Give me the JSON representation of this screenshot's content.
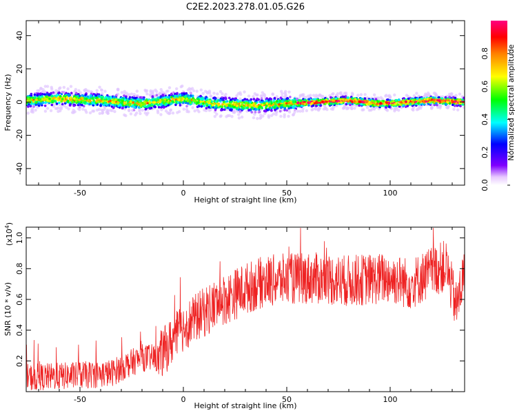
{
  "title": "C2E2.2023.278.01.05.G26",
  "chart_data": [
    {
      "type": "heatmap",
      "xlabel": "Height of straight line (km)",
      "ylabel": "Frequency (Hz)",
      "xlim": [
        -76,
        136
      ],
      "ylim": [
        -50,
        49
      ],
      "xticks": [
        -50,
        0,
        50,
        100
      ],
      "yticks": [
        -40,
        -20,
        0,
        20,
        40
      ],
      "colorbar": {
        "label": "Normalized spectral amplitude",
        "range": [
          0,
          1
        ],
        "ticks": [
          "0.0",
          "0.2",
          "0.4",
          "0.6",
          "0.8"
        ]
      },
      "band_center": [
        {
          "x": -76,
          "y": 1
        },
        {
          "x": -60,
          "y": 2
        },
        {
          "x": -40,
          "y": 1
        },
        {
          "x": -20,
          "y": -1
        },
        {
          "x": 0,
          "y": 2
        },
        {
          "x": 15,
          "y": -1
        },
        {
          "x": 35,
          "y": -2
        },
        {
          "x": 50,
          "y": -1
        },
        {
          "x": 65,
          "y": 0
        },
        {
          "x": 80,
          "y": 1
        },
        {
          "x": 95,
          "y": -1
        },
        {
          "x": 110,
          "y": 0
        },
        {
          "x": 120,
          "y": 1
        },
        {
          "x": 136,
          "y": 0
        }
      ]
    },
    {
      "type": "line",
      "xlabel": "Height of straight line (km)",
      "ylabel": "SNR (10 * v/v)",
      "yscale_label": "(x10",
      "yscale_exp": "4",
      "yscale_close": ")",
      "xlim": [
        -76,
        136
      ],
      "ylim": [
        0,
        1.07
      ],
      "xticks": [
        -50,
        0,
        50,
        100
      ],
      "yticks": [
        "0.2",
        "0.4",
        "0.6",
        "0.8",
        "1.0"
      ],
      "series": [
        {
          "color": "#ee2222",
          "trend": [
            {
              "x": -76,
              "y": 0.09
            },
            {
              "x": -60,
              "y": 0.1
            },
            {
              "x": -45,
              "y": 0.11
            },
            {
              "x": -35,
              "y": 0.12
            },
            {
              "x": -28,
              "y": 0.17
            },
            {
              "x": -20,
              "y": 0.22
            },
            {
              "x": -12,
              "y": 0.22
            },
            {
              "x": 0,
              "y": 0.42
            },
            {
              "x": 10,
              "y": 0.52
            },
            {
              "x": 20,
              "y": 0.6
            },
            {
              "x": 30,
              "y": 0.67
            },
            {
              "x": 40,
              "y": 0.72
            },
            {
              "x": 50,
              "y": 0.73
            },
            {
              "x": 60,
              "y": 0.74
            },
            {
              "x": 70,
              "y": 0.73
            },
            {
              "x": 80,
              "y": 0.72
            },
            {
              "x": 90,
              "y": 0.73
            },
            {
              "x": 100,
              "y": 0.74
            },
            {
              "x": 110,
              "y": 0.7
            },
            {
              "x": 120,
              "y": 0.78
            },
            {
              "x": 127,
              "y": 0.82
            },
            {
              "x": 132,
              "y": 0.55
            },
            {
              "x": 136,
              "y": 0.78
            }
          ]
        }
      ]
    }
  ]
}
